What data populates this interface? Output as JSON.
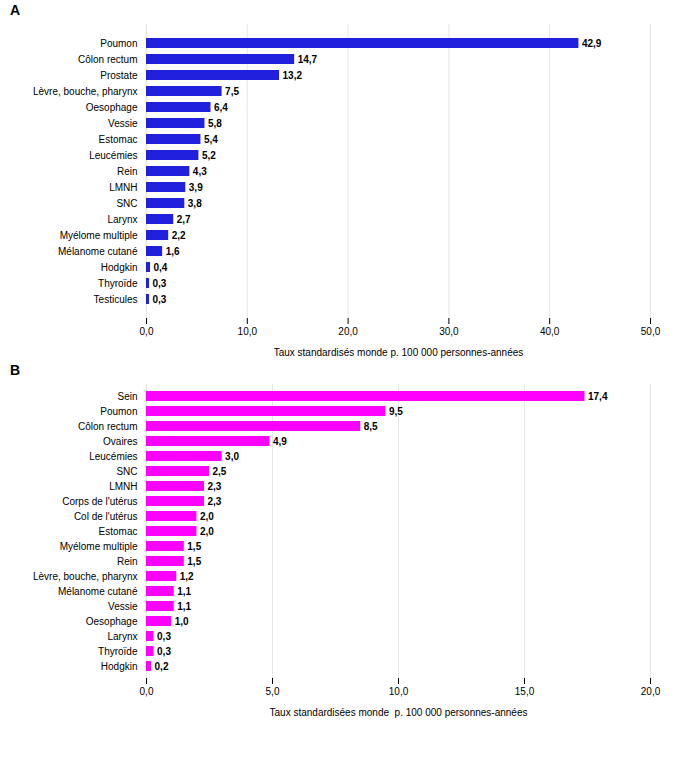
{
  "chart_data": [
    {
      "type": "bar",
      "orientation": "horizontal",
      "title": "A",
      "categories": [
        "Poumon",
        "Côlon rectum",
        "Prostate",
        "Lèvre, bouche, pharynx",
        "Oesophage",
        "Vessie",
        "Estomac",
        "Leucémies",
        "Rein",
        "LMNH",
        "SNC",
        "Larynx",
        "Myélome multiple",
        "Mélanome cutané",
        "Hodgkin",
        "Thyroïde",
        "Testicules"
      ],
      "values": [
        42.9,
        14.7,
        13.2,
        7.5,
        6.4,
        5.8,
        5.4,
        5.2,
        4.3,
        3.9,
        3.8,
        2.7,
        2.2,
        1.6,
        0.4,
        0.3,
        0.3
      ],
      "value_labels": [
        "42,9",
        "14,7",
        "13,2",
        "7,5",
        "6,4",
        "5,8",
        "5,4",
        "5,2",
        "4,3",
        "3,9",
        "3,8",
        "2,7",
        "2,2",
        "1,6",
        "0,4",
        "0,3",
        "0,3"
      ],
      "data_labels": true,
      "color": "#2020dd",
      "xlim": [
        0,
        50
      ],
      "xticks": [
        {
          "value": 0,
          "label": "0,0"
        },
        {
          "value": 10,
          "label": "10,0"
        },
        {
          "value": 20,
          "label": "20,0"
        },
        {
          "value": 30,
          "label": "30,0"
        },
        {
          "value": 40,
          "label": "40,0"
        },
        {
          "value": 50,
          "label": "50,0"
        }
      ],
      "xlabel": "Taux standardisés monde p. 100 000 personnes-années",
      "grid": true
    },
    {
      "type": "bar",
      "orientation": "horizontal",
      "title": "B",
      "categories": [
        "Sein",
        "Poumon",
        "Côlon rectum",
        "Ovaires",
        "Leucémies",
        "SNC",
        "LMNH",
        "Corps de l'utérus",
        "Col de l'utérus",
        "Estomac",
        "Myélome multiple",
        "Rein",
        "Lèvre, bouche, pharynx",
        "Mélanome cutané",
        "Vessie",
        "Oesophage",
        "Larynx",
        "Thyroïde",
        "Hodgkin"
      ],
      "values": [
        17.4,
        9.5,
        8.5,
        4.9,
        3.0,
        2.5,
        2.3,
        2.3,
        2.0,
        2.0,
        1.5,
        1.5,
        1.2,
        1.1,
        1.1,
        1.0,
        0.3,
        0.3,
        0.2
      ],
      "value_labels": [
        "17,4",
        "9,5",
        "8,5",
        "4,9",
        "3,0",
        "2,5",
        "2,3",
        "2,3",
        "2,0",
        "2,0",
        "1,5",
        "1,5",
        "1,2",
        "1,1",
        "1,1",
        "1,0",
        "0,3",
        "0,3",
        "0,2"
      ],
      "data_labels": true,
      "color": "#ff00ff",
      "xlim": [
        0,
        20
      ],
      "xticks": [
        {
          "value": 0,
          "label": "0,0"
        },
        {
          "value": 5,
          "label": "5,0"
        },
        {
          "value": 10,
          "label": "10,0"
        },
        {
          "value": 15,
          "label": "15,0"
        },
        {
          "value": 20,
          "label": "20,0"
        }
      ],
      "xlabel": "Taux standardisées monde  p. 100 000 personnes-années",
      "grid": true
    }
  ]
}
